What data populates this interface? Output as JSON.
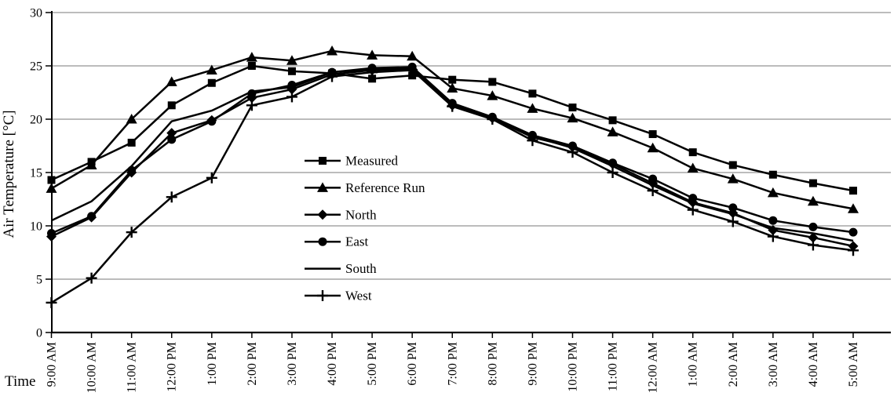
{
  "chart_data": {
    "type": "line",
    "title": "",
    "xlabel": "Time",
    "ylabel": "Air Temperature [°C]",
    "ylim": [
      0,
      30
    ],
    "yticks": [
      0,
      5,
      10,
      15,
      20,
      25,
      30
    ],
    "grid": "horizontal",
    "legend_position": "inside-center",
    "colors": {
      "series": "#000000",
      "grid": "#a6a6a6",
      "axis": "#000000",
      "background": "#ffffff"
    },
    "categories": [
      "9:00 AM",
      "10:00 AM",
      "11:00 AM",
      "12:00 PM",
      "1:00 PM",
      "2:00 PM",
      "3:00 PM",
      "4:00 PM",
      "5:00 PM",
      "6:00 PM",
      "7:00 PM",
      "8:00 PM",
      "9:00 PM",
      "10:00 PM",
      "11:00 PM",
      "12:00 AM",
      "1:00 AM",
      "2:00 AM",
      "3:00 AM",
      "4:00 AM",
      "5:00 AM"
    ],
    "series": [
      {
        "name": "Measured",
        "marker": "square",
        "values": [
          14.3,
          16.0,
          17.8,
          21.3,
          23.4,
          25.0,
          24.5,
          24.3,
          23.8,
          24.1,
          23.7,
          23.5,
          22.4,
          21.1,
          19.9,
          18.6,
          16.9,
          15.7,
          14.8,
          14.0,
          13.3
        ]
      },
      {
        "name": "Reference Run",
        "marker": "triangle",
        "values": [
          13.5,
          15.7,
          20.0,
          23.5,
          24.6,
          25.8,
          25.5,
          26.4,
          26.0,
          25.9,
          22.9,
          22.2,
          21.0,
          20.1,
          18.8,
          17.3,
          15.4,
          14.4,
          13.1,
          12.3,
          11.6
        ]
      },
      {
        "name": "North",
        "marker": "diamond",
        "values": [
          9.0,
          10.8,
          15.0,
          18.7,
          19.9,
          22.0,
          22.8,
          24.2,
          24.6,
          24.7,
          21.3,
          20.1,
          18.3,
          17.4,
          15.8,
          14.0,
          12.2,
          11.2,
          9.6,
          8.9,
          8.1
        ]
      },
      {
        "name": "East",
        "marker": "circle",
        "values": [
          9.3,
          10.9,
          15.2,
          18.1,
          19.8,
          22.4,
          23.2,
          24.4,
          24.8,
          24.9,
          21.5,
          20.2,
          18.5,
          17.5,
          15.9,
          14.4,
          12.6,
          11.7,
          10.5,
          9.9,
          9.4
        ]
      },
      {
        "name": "South",
        "marker": "none",
        "values": [
          10.5,
          12.3,
          15.6,
          19.8,
          20.8,
          22.6,
          23.0,
          24.4,
          24.7,
          24.8,
          21.4,
          20.1,
          18.4,
          17.3,
          15.6,
          13.8,
          12.1,
          11.1,
          9.8,
          9.3,
          8.6
        ]
      },
      {
        "name": "West",
        "marker": "plus",
        "values": [
          2.8,
          5.1,
          9.4,
          12.7,
          14.5,
          21.3,
          22.1,
          24.0,
          24.4,
          24.6,
          21.2,
          20.0,
          18.0,
          16.9,
          15.0,
          13.3,
          11.5,
          10.4,
          9.0,
          8.2,
          7.7
        ]
      }
    ]
  }
}
